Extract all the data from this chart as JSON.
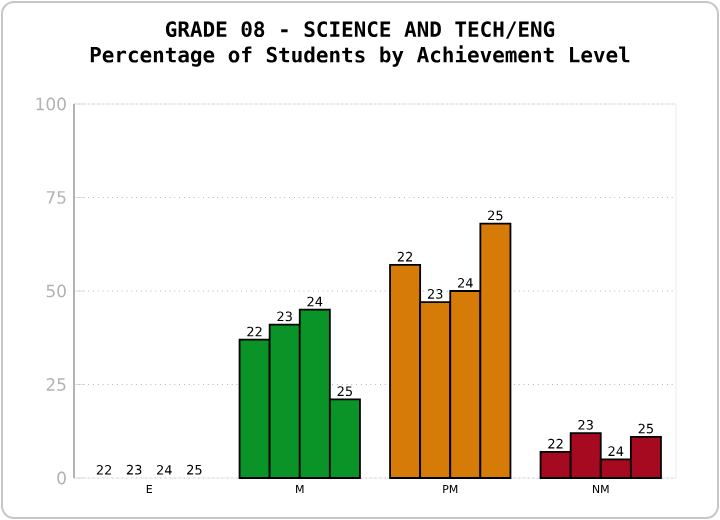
{
  "chart_data": {
    "type": "bar",
    "title": "GRADE 08 - SCIENCE AND TECH/ENG",
    "subtitle": "Percentage of Students by Achievement Level",
    "categories": [
      "E",
      "M",
      "PM",
      "NM"
    ],
    "series": [
      {
        "name": "22",
        "colors": [
          null,
          "#0a9428",
          "#d67b07",
          "#a50a21"
        ],
        "values": [
          0,
          37,
          57,
          7
        ]
      },
      {
        "name": "23",
        "colors": [
          null,
          "#0a9428",
          "#d67b07",
          "#a50a21"
        ],
        "values": [
          0,
          41,
          47,
          12
        ]
      },
      {
        "name": "24",
        "colors": [
          null,
          "#0a9428",
          "#d67b07",
          "#a50a21"
        ],
        "values": [
          0,
          45,
          50,
          5
        ]
      },
      {
        "name": "25",
        "colors": [
          null,
          "#0a9428",
          "#d67b07",
          "#a50a21"
        ],
        "values": [
          0,
          21,
          68,
          11
        ]
      }
    ],
    "ylim": [
      0,
      100
    ],
    "yticks": [
      0,
      25,
      50,
      75,
      100
    ],
    "grid": "y"
  }
}
